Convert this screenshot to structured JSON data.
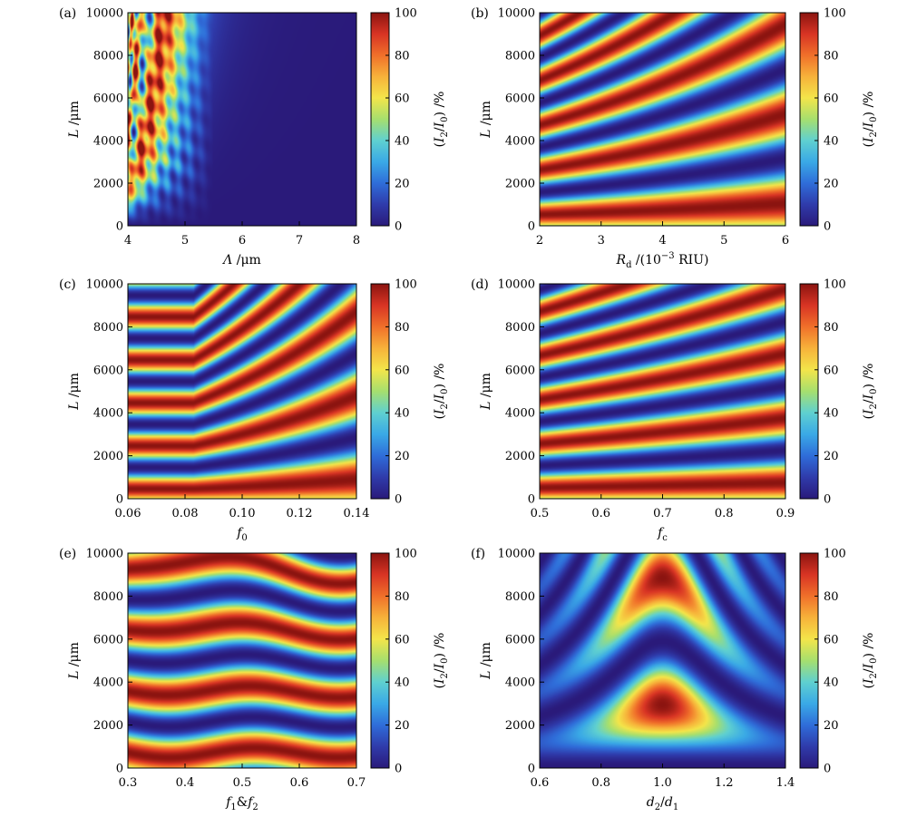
{
  "colorscale": [
    "#2a1a7a",
    "#2f3bab",
    "#2f6dd9",
    "#3aa9e6",
    "#5fd0d0",
    "#a6df6e",
    "#f3e54a",
    "#f7b23a",
    "#f0702a",
    "#d83424",
    "#8b1410"
  ],
  "chart_data": [
    {
      "type": "heatmap",
      "panel_label": "(a)",
      "xlabel": "Λ /μm",
      "ylabel": "L /μm",
      "colorbar_label": "(I2/I0) /%",
      "xlim": [
        4,
        8
      ],
      "ylim": [
        0,
        10000
      ],
      "clim": [
        0,
        100
      ],
      "x_ticks": [
        "4",
        "5",
        "6",
        "7",
        "8"
      ],
      "y_ticks": [
        "0",
        "2000",
        "4000",
        "6000",
        "8000",
        "10000"
      ],
      "colorbar_ticks": [
        "0",
        "20",
        "40",
        "60",
        "80",
        "100"
      ],
      "pattern": "coupling_period",
      "description_free": true
    },
    {
      "type": "heatmap",
      "panel_label": "(b)",
      "xlabel": "Rd /(10−3 RIU)",
      "ylabel": "L /μm",
      "colorbar_label": "(I2/I0) /%",
      "xlim": [
        2,
        6
      ],
      "ylim": [
        0,
        10000
      ],
      "clim": [
        0,
        100
      ],
      "x_ticks": [
        "2",
        "3",
        "4",
        "5",
        "6"
      ],
      "y_ticks": [
        "0",
        "2000",
        "4000",
        "6000",
        "8000",
        "10000"
      ],
      "colorbar_ticks": [
        "0",
        "20",
        "40",
        "60",
        "80",
        "100"
      ],
      "pattern": "fringes",
      "fringe_period_at_xmin": 2100,
      "fringe_period_at_xmax": 4200,
      "fringe_phase": 0.25
    },
    {
      "type": "heatmap",
      "panel_label": "(c)",
      "xlabel": "f0",
      "ylabel": "L /μm",
      "colorbar_label": "(I2/I0) /%",
      "xlim": [
        0.06,
        0.14
      ],
      "ylim": [
        0,
        10000
      ],
      "clim": [
        0,
        100
      ],
      "x_ticks": [
        "0.06",
        "0.08",
        "0.10",
        "0.12",
        "0.14"
      ],
      "y_ticks": [
        "0",
        "2000",
        "4000",
        "6000",
        "8000",
        "10000"
      ],
      "colorbar_ticks": [
        "0",
        "20",
        "40",
        "60",
        "80",
        "100"
      ],
      "pattern": "kinked_fringes",
      "fringe_period_at_xmin": 2000,
      "fringe_period_at_xmax": 3900,
      "kink_x": 0.083,
      "fringe_phase": 0.27
    },
    {
      "type": "heatmap",
      "panel_label": "(d)",
      "xlabel": "fc",
      "ylabel": "L /μm",
      "colorbar_label": "(I2/I0) /%",
      "xlim": [
        0.5,
        0.9
      ],
      "ylim": [
        0,
        10000
      ],
      "clim": [
        0,
        100
      ],
      "x_ticks": [
        "0.5",
        "0.6",
        "0.7",
        "0.8",
        "0.9"
      ],
      "y_ticks": [
        "0",
        "2000",
        "4000",
        "6000",
        "8000",
        "10000"
      ],
      "colorbar_ticks": [
        "0",
        "20",
        "40",
        "60",
        "80",
        "100"
      ],
      "pattern": "fringes",
      "fringe_period_at_xmin": 2050,
      "fringe_period_at_xmax": 3000,
      "fringe_phase": 0.25
    },
    {
      "type": "heatmap",
      "panel_label": "(e)",
      "xlabel": "f1&f2",
      "ylabel": "L /μm",
      "colorbar_label": "(I2/I0) /%",
      "xlim": [
        0.3,
        0.7
      ],
      "ylim": [
        0,
        10000
      ],
      "clim": [
        0,
        100
      ],
      "x_ticks": [
        "0.3",
        "0.4",
        "0.5",
        "0.6",
        "0.7"
      ],
      "y_ticks": [
        "0",
        "2000",
        "4000",
        "6000",
        "8000",
        "10000"
      ],
      "colorbar_ticks": [
        "0",
        "20",
        "40",
        "60",
        "80",
        "100"
      ],
      "pattern": "wavy_fringes",
      "fringe_period_at_xmin": 2850,
      "fringe_period_at_xmax": 2850,
      "fringe_phase": 0.25
    },
    {
      "type": "heatmap",
      "panel_label": "(f)",
      "xlabel": "d2/d1",
      "ylabel": "L /μm",
      "colorbar_label": "(I2/I0) /%",
      "xlim": [
        0.6,
        1.4
      ],
      "ylim": [
        0,
        10000
      ],
      "clim": [
        0,
        100
      ],
      "x_ticks": [
        "0.6",
        "0.8",
        "1.0",
        "1.2",
        "1.4"
      ],
      "y_ticks": [
        "0",
        "2000",
        "4000",
        "6000",
        "8000",
        "10000"
      ],
      "colorbar_ticks": [
        "0",
        "20",
        "40",
        "60",
        "80",
        "100"
      ],
      "pattern": "mismatch",
      "peak_x": 1.0,
      "fringe_period_at_xmin": 5900,
      "fringe_period_at_xmax": 5900
    }
  ]
}
